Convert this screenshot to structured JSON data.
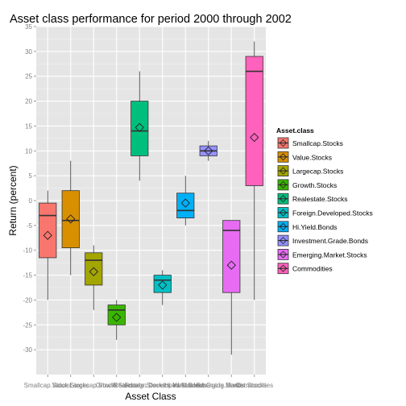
{
  "chart_data": {
    "type": "box",
    "title": "Asset class performance for period 2000 through 2002",
    "xlabel": "Asset Class",
    "ylabel": "Return (percent)",
    "ylim": [
      -35,
      35
    ],
    "yticks": [
      -30,
      -25,
      -20,
      -15,
      -10,
      -5,
      0,
      5,
      10,
      15,
      20,
      25,
      30,
      35
    ],
    "grid": true,
    "legend_position": "right",
    "legend_title": "Asset.class",
    "categories": [
      "Smallcap.Stocks",
      "Value.Stocks",
      "Largecap.Stocks",
      "Growth.Stocks",
      "Realestate.Stocks",
      "Foreign.Developed.Stocks",
      "Hi.Yield.Bonds",
      "Investment.Grade.Bonds",
      "Emerging.Market.Stocks",
      "Commodities"
    ],
    "x_tick_labels": [
      "Smallcap.Stocks",
      "Value.Stocks",
      "Largecap.Stocks",
      "Growth.Stocks",
      "Realestate.Stocks",
      "Foreign.Developed.Stocks",
      "Hi.Yield.Bonds",
      "Investment.Grade.Bonds",
      "Emerging.Market.Stocks",
      "Commodities"
    ],
    "colors": [
      "#f8766d",
      "#d89000",
      "#a3a500",
      "#39b600",
      "#00bf7d",
      "#00bfc4",
      "#00b0f6",
      "#9590ff",
      "#e76bf3",
      "#ff62bc"
    ],
    "boxes": [
      {
        "name": "Smallcap.Stocks",
        "min": -20,
        "q1": -11.5,
        "median": -3,
        "q3": -0.5,
        "max": 2,
        "mean": -7
      },
      {
        "name": "Value.Stocks",
        "min": -15,
        "q1": -9.5,
        "median": -4,
        "q3": 2,
        "max": 8,
        "mean": -3.7
      },
      {
        "name": "Largecap.Stocks",
        "min": -22,
        "q1": -17,
        "median": -12,
        "q3": -10.5,
        "max": -9,
        "mean": -14.3
      },
      {
        "name": "Growth.Stocks",
        "min": -28,
        "q1": -25,
        "median": -22,
        "q3": -21,
        "max": -20,
        "mean": -23.5
      },
      {
        "name": "Realestate.Stocks",
        "min": 4,
        "q1": 9,
        "median": 14,
        "q3": 20,
        "max": 26,
        "mean": 14.7
      },
      {
        "name": "Foreign.Developed.Stocks",
        "min": -21,
        "q1": -18.5,
        "median": -16,
        "q3": -15,
        "max": -14,
        "mean": -17
      },
      {
        "name": "Hi.Yield.Bonds",
        "min": -5,
        "q1": -3.5,
        "median": -2,
        "q3": 1.5,
        "max": 5,
        "mean": -0.5
      },
      {
        "name": "Investment.Grade.Bonds",
        "min": 8,
        "q1": 9,
        "median": 10,
        "q3": 11,
        "max": 12,
        "mean": 10
      },
      {
        "name": "Emerging.Market.Stocks",
        "min": -31,
        "q1": -18.5,
        "median": -6,
        "q3": -4,
        "max": -4,
        "mean": -13
      },
      {
        "name": "Commodities",
        "min": -20,
        "q1": 3,
        "median": 26,
        "q3": 29,
        "max": 32,
        "mean": 12.7
      }
    ]
  }
}
